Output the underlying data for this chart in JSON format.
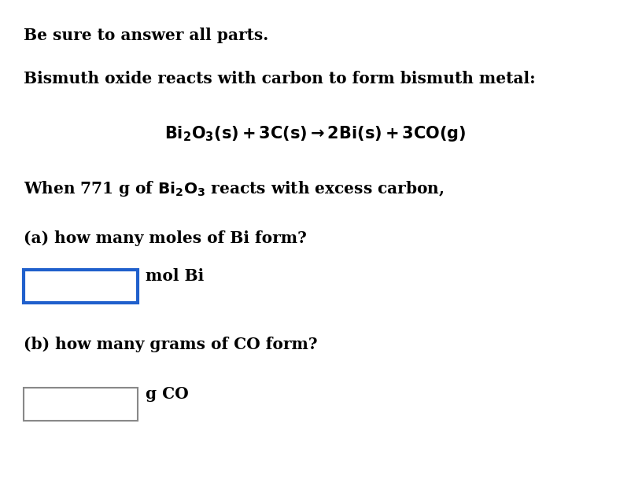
{
  "background_color": "#ffffff",
  "line1": "Be sure to answer all parts.",
  "line2": "Bismuth oxide reacts with carbon to form bismuth metal:",
  "line4": "When 771 g of $\\mathbf{Bi_2O_3}$ reacts with excess carbon,",
  "line5a": "(a) how many moles of Bi form?",
  "label_a": "mol Bi",
  "line5b": "(b) how many grams of CO form?",
  "label_b": "g CO",
  "box_a_color": "#2060cc",
  "box_b_color": "#888888",
  "text_color": "#000000",
  "fontsize": 14.5,
  "eq_fontsize": 15
}
